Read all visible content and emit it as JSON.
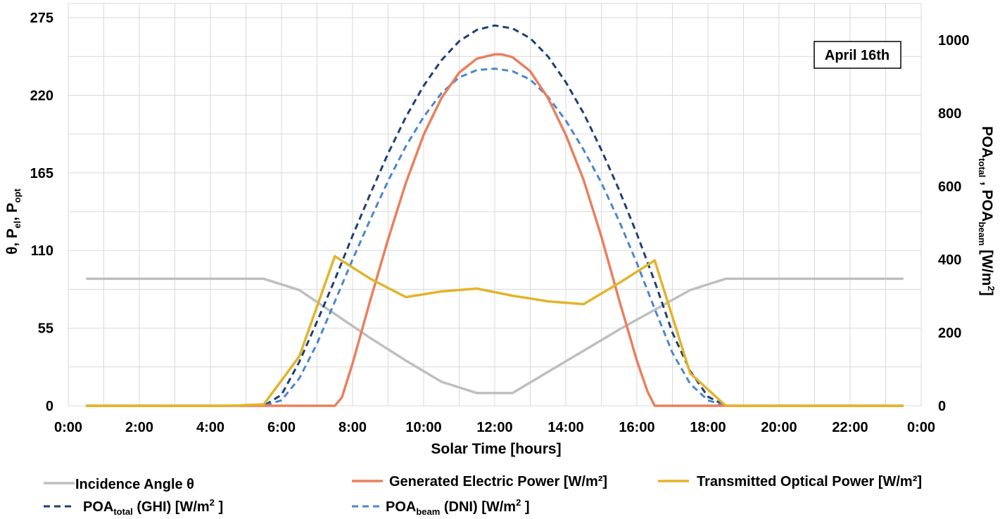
{
  "chart_data": {
    "type": "line",
    "annotation": "April 16th",
    "xlabel": "Solar Time [hours]",
    "x_ticks": [
      "0:00",
      "2:00",
      "4:00",
      "6:00",
      "8:00",
      "10:00",
      "12:00",
      "14:00",
      "16:00",
      "18:00",
      "20:00",
      "22:00",
      "0:00"
    ],
    "xlim": [
      0,
      24
    ],
    "left_axis": {
      "label_parts": [
        {
          "t": "θ, P",
          "sub": false
        },
        {
          "t": "el",
          "sub": true
        },
        {
          "t": ", P",
          "sub": false
        },
        {
          "t": "opt",
          "sub": true
        }
      ],
      "ticks": [
        "0",
        "55",
        "110",
        "165",
        "220",
        "275"
      ],
      "ylim": [
        0,
        285
      ]
    },
    "right_axis": {
      "label_parts": [
        {
          "t": "POA",
          "sub": false
        },
        {
          "t": "total",
          "sub": true
        },
        {
          "t": " , POA",
          "sub": false
        },
        {
          "t": "beam",
          "sub": true
        },
        {
          "t": " [W/m",
          "sub": false
        },
        {
          "t": "2",
          "sup": true
        },
        {
          "t": "]",
          "sub": false
        }
      ],
      "ticks": [
        "0",
        "200",
        "400",
        "600",
        "800",
        "1000"
      ],
      "ylim": [
        0,
        1100
      ]
    },
    "grid": true,
    "legend_position": "bottom",
    "series": [
      {
        "name": "Incidence Angle θ",
        "axis": "left",
        "color": "#bfbfbf",
        "style": "solid",
        "x": [
          0.5,
          1.5,
          2.5,
          3.5,
          4.5,
          5.5,
          6.5,
          7.5,
          8.5,
          9.5,
          10.5,
          11.5,
          12.5,
          13.5,
          14.5,
          15.5,
          16.5,
          17.5,
          18.5,
          19.5,
          20.5,
          21.5,
          22.5,
          23.5
        ],
        "y": [
          90,
          90,
          90,
          90,
          90,
          90,
          82,
          65,
          48,
          32,
          17,
          9,
          9,
          24,
          39,
          54,
          68,
          82,
          90,
          90,
          90,
          90,
          90,
          90
        ]
      },
      {
        "name": "Generated Electric Power [W/m²]",
        "axis": "left",
        "color": "#e9805e",
        "style": "solid",
        "x": [
          0.5,
          6.5,
          7.5,
          7.7,
          8.0,
          8.5,
          9.0,
          9.5,
          10.0,
          10.5,
          11.0,
          11.5,
          12.0,
          12.2,
          12.5,
          13.0,
          13.5,
          14.0,
          14.5,
          15.0,
          15.5,
          16.0,
          16.3,
          16.5,
          17.5,
          23.5
        ],
        "y": [
          0,
          0,
          0,
          6,
          30,
          75,
          118,
          158,
          192,
          218,
          236,
          246,
          249,
          249,
          247,
          237,
          218,
          192,
          160,
          120,
          75,
          32,
          10,
          0,
          0,
          0
        ]
      },
      {
        "name": "Transmitted Optical Power [W/m²]",
        "axis": "left",
        "color": "#e2b42a",
        "style": "solid",
        "x": [
          0.5,
          1.5,
          2.5,
          3.5,
          4.5,
          5.5,
          6.5,
          7.5,
          8.5,
          9.5,
          10.5,
          11.5,
          12.5,
          13.5,
          14.5,
          15.5,
          16.5,
          17.5,
          18.5,
          19.5,
          20.5,
          21.5,
          22.5,
          23.5
        ],
        "y": [
          0,
          0,
          0,
          0,
          0,
          1,
          35,
          106,
          90,
          77,
          81,
          83,
          78,
          74,
          72,
          87,
          103,
          23,
          0,
          0,
          0,
          0,
          0,
          0
        ]
      },
      {
        "name": "POA_total (GHI) [W/m² ]",
        "label_parts": [
          {
            "t": "POA",
            "sub": false
          },
          {
            "t": "total",
            "sub": true
          },
          {
            "t": " (GHI) [W/m",
            "sub": false
          },
          {
            "t": "2",
            "sup": true
          },
          {
            "t": " ]",
            "sub": false
          }
        ],
        "axis": "right",
        "color": "#1f3f73",
        "style": "dash",
        "x": [
          0.5,
          5.5,
          6.0,
          6.5,
          7.0,
          7.5,
          8.0,
          8.5,
          9.0,
          9.5,
          10.0,
          10.5,
          11.0,
          11.5,
          12.0,
          12.5,
          13.0,
          13.5,
          14.0,
          14.5,
          15.0,
          15.5,
          16.0,
          16.5,
          17.0,
          17.5,
          18.0,
          18.5,
          23.5
        ],
        "y": [
          0,
          0,
          30,
          120,
          230,
          345,
          465,
          580,
          690,
          790,
          875,
          945,
          997,
          1028,
          1040,
          1032,
          1005,
          955,
          885,
          800,
          700,
          590,
          470,
          340,
          200,
          95,
          25,
          0,
          0
        ]
      },
      {
        "name": "POA_beam (DNI) [W/m² ]",
        "label_parts": [
          {
            "t": "POA",
            "sub": false
          },
          {
            "t": "beam",
            "sub": true
          },
          {
            "t": " (DNI) [W/m",
            "sub": false
          },
          {
            "t": "2",
            "sup": true
          },
          {
            "t": " ]",
            "sub": false
          }
        ],
        "axis": "right",
        "color": "#4a86cf",
        "style": "dash",
        "x": [
          0.5,
          5.5,
          6.0,
          6.5,
          7.0,
          7.5,
          8.0,
          8.5,
          9.0,
          9.5,
          10.0,
          10.5,
          11.0,
          11.5,
          12.0,
          12.5,
          13.0,
          13.5,
          14.0,
          14.5,
          15.0,
          15.5,
          16.0,
          16.5,
          17.0,
          17.5,
          18.0,
          18.5,
          23.5
        ],
        "y": [
          0,
          0,
          15,
          75,
          170,
          285,
          400,
          510,
          615,
          710,
          790,
          855,
          898,
          918,
          922,
          915,
          892,
          845,
          780,
          700,
          610,
          505,
          390,
          265,
          145,
          60,
          15,
          0,
          0
        ]
      }
    ]
  },
  "legend": [
    {
      "key": "incidence",
      "label": "Incidence Angle θ",
      "color": "#bfbfbf",
      "style": "solid"
    },
    {
      "key": "electric",
      "label": "Generated Electric Power [W/m²]",
      "color": "#e9805e",
      "style": "solid"
    },
    {
      "key": "optical",
      "label": "Transmitted Optical Power [W/m²]",
      "color": "#e2b42a",
      "style": "solid"
    },
    {
      "key": "poa_total",
      "label": "POA_total (GHI) [W/m² ]",
      "color": "#1f3f73",
      "style": "dash"
    },
    {
      "key": "poa_beam",
      "label": "POA_beam (DNI) [W/m² ]",
      "color": "#4a86cf",
      "style": "dash"
    }
  ]
}
